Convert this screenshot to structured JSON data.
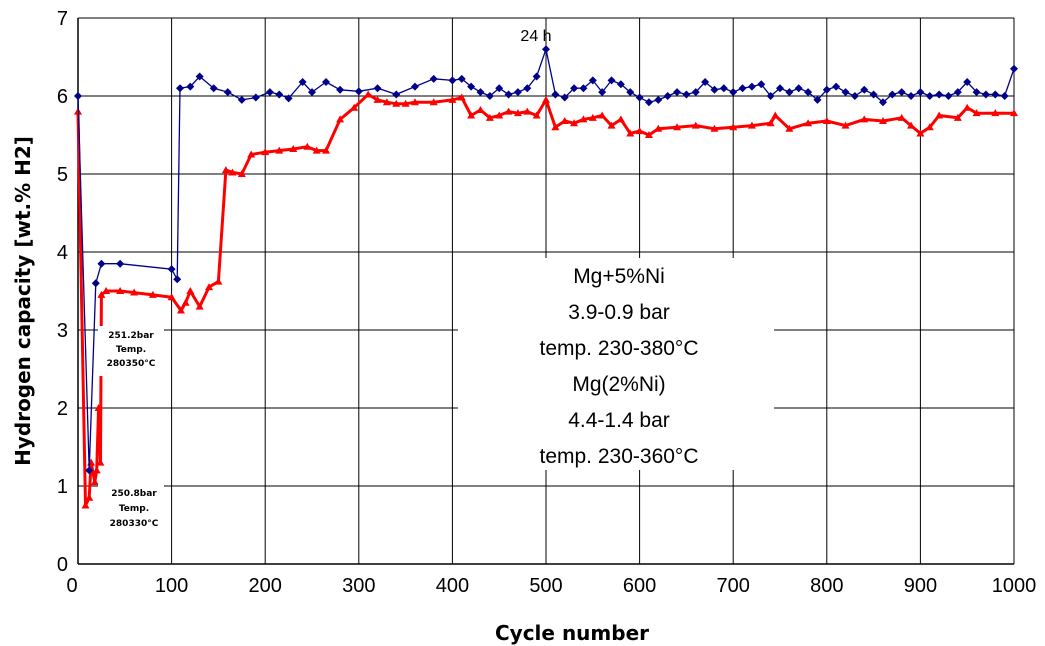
{
  "chart_data": {
    "type": "line",
    "xlabel": "Cycle number",
    "ylabel": "Hydrogen capacity [wt.% H2]",
    "xlim": [
      0,
      1000
    ],
    "ylim": [
      0,
      7
    ],
    "x_ticks": [
      "0",
      "100",
      "200",
      "300",
      "400",
      "500",
      "600",
      "700",
      "800",
      "900",
      "1000"
    ],
    "y_ticks": [
      "0",
      "1",
      "2",
      "3",
      "4",
      "5",
      "6",
      "7"
    ],
    "grid": true,
    "legend_box": {
      "lines": [
        "Mg+5%Ni",
        "3.9-0.9 bar",
        "temp. 230-380°C",
        "Mg(2%Ni)",
        "4.4-1.4 bar",
        "temp. 230-360°C"
      ]
    },
    "annotations": {
      "peak": "24 h",
      "upper_note": [
        "251.2bar",
        "Temp.",
        "280350°C"
      ],
      "lower_note": [
        "250.8bar",
        "Temp.",
        "280330°C"
      ]
    },
    "series": [
      {
        "color": "#00008b",
        "marker": "diamond",
        "x": [
          0,
          12,
          19,
          25,
          45,
          100,
          106,
          109,
          120,
          130,
          145,
          160,
          175,
          190,
          205,
          215,
          225,
          240,
          250,
          265,
          280,
          300,
          320,
          340,
          360,
          380,
          400,
          410,
          420,
          430,
          440,
          450,
          460,
          470,
          480,
          490,
          500,
          510,
          520,
          530,
          540,
          550,
          560,
          570,
          580,
          590,
          600,
          610,
          620,
          630,
          640,
          650,
          660,
          670,
          680,
          690,
          700,
          710,
          720,
          730,
          740,
          750,
          760,
          770,
          780,
          790,
          800,
          810,
          820,
          830,
          840,
          850,
          860,
          870,
          880,
          890,
          900,
          910,
          920,
          930,
          940,
          950,
          960,
          970,
          980,
          990,
          1000
        ],
        "y": [
          6.0,
          1.2,
          3.6,
          3.85,
          3.85,
          3.78,
          3.65,
          6.1,
          6.12,
          6.25,
          6.1,
          6.05,
          5.95,
          5.98,
          6.05,
          6.02,
          5.97,
          6.18,
          6.05,
          6.18,
          6.08,
          6.06,
          6.1,
          6.02,
          6.12,
          6.22,
          6.2,
          6.22,
          6.12,
          6.05,
          6.0,
          6.1,
          6.02,
          6.05,
          6.1,
          6.25,
          6.6,
          6.02,
          5.98,
          6.1,
          6.1,
          6.2,
          6.05,
          6.2,
          6.15,
          6.05,
          5.98,
          5.92,
          5.95,
          6.0,
          6.05,
          6.02,
          6.05,
          6.18,
          6.08,
          6.1,
          6.05,
          6.1,
          6.12,
          6.15,
          6.0,
          6.1,
          6.05,
          6.1,
          6.05,
          5.95,
          6.08,
          6.12,
          6.05,
          6.0,
          6.08,
          6.02,
          5.92,
          6.02,
          6.05,
          6.0,
          6.05,
          6.0,
          6.02,
          6.0,
          6.05,
          6.18,
          6.05,
          6.02,
          6.02,
          6.0,
          6.35
        ]
      },
      {
        "color": "#ff0000",
        "marker": "triangle",
        "x": [
          0,
          8,
          12,
          14,
          18,
          20,
          22,
          24,
          25,
          30,
          45,
          60,
          80,
          100,
          110,
          115,
          120,
          130,
          140,
          150,
          158,
          165,
          175,
          185,
          200,
          215,
          230,
          245,
          255,
          265,
          280,
          295,
          310,
          320,
          330,
          340,
          350,
          360,
          380,
          400,
          410,
          420,
          430,
          440,
          450,
          460,
          470,
          480,
          490,
          500,
          510,
          520,
          530,
          540,
          550,
          560,
          570,
          580,
          590,
          600,
          610,
          620,
          640,
          660,
          680,
          700,
          720,
          740,
          745,
          760,
          780,
          800,
          820,
          840,
          860,
          880,
          890,
          900,
          910,
          920,
          940,
          950,
          960,
          980,
          1000
        ],
        "y": [
          5.8,
          0.75,
          0.85,
          1.3,
          1.05,
          1.2,
          2.0,
          1.3,
          3.45,
          3.5,
          3.5,
          3.48,
          3.45,
          3.42,
          3.25,
          3.35,
          3.5,
          3.3,
          3.55,
          3.62,
          5.05,
          5.02,
          5.0,
          5.25,
          5.28,
          5.3,
          5.32,
          5.35,
          5.3,
          5.3,
          5.7,
          5.85,
          6.02,
          5.95,
          5.92,
          5.9,
          5.9,
          5.92,
          5.92,
          5.95,
          5.98,
          5.75,
          5.82,
          5.72,
          5.75,
          5.8,
          5.78,
          5.8,
          5.75,
          5.95,
          5.6,
          5.68,
          5.65,
          5.7,
          5.72,
          5.75,
          5.62,
          5.7,
          5.52,
          5.55,
          5.5,
          5.58,
          5.6,
          5.62,
          5.58,
          5.6,
          5.62,
          5.65,
          5.75,
          5.58,
          5.65,
          5.68,
          5.62,
          5.7,
          5.68,
          5.72,
          5.62,
          5.52,
          5.6,
          5.75,
          5.72,
          5.85,
          5.78,
          5.78,
          5.78
        ]
      }
    ]
  }
}
